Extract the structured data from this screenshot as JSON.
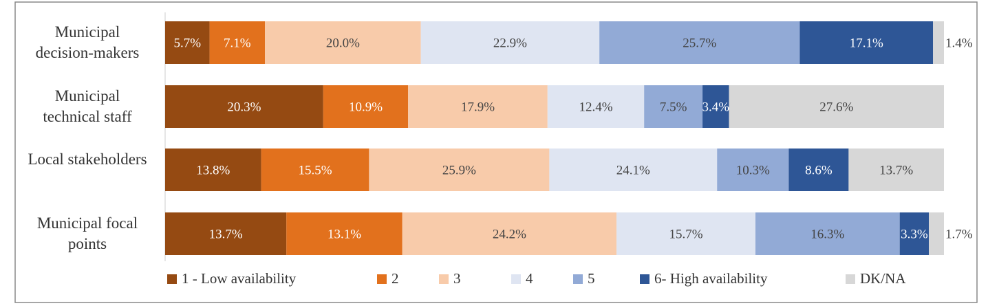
{
  "chart_data": {
    "type": "stacked-bar-horizontal",
    "categories": [
      "Municipal decision-makers",
      "Municipal technical staff",
      "Local stakeholders",
      "Municipal focal points"
    ],
    "series": [
      {
        "name": "1 - Low availability",
        "color": "#954a12",
        "values": [
          5.7,
          20.3,
          13.8,
          13.7
        ],
        "value_labels": [
          "5.7%",
          "20.3%",
          "13.8%",
          "13.7%"
        ]
      },
      {
        "name": "2",
        "color": "#e2711d",
        "values": [
          7.1,
          10.9,
          15.5,
          13.1
        ],
        "value_labels": [
          "7.1%",
          "10.9%",
          "15.5%",
          "13.1%"
        ]
      },
      {
        "name": "3",
        "color": "#f8cbaa",
        "values": [
          20.0,
          17.9,
          25.9,
          24.2
        ],
        "value_labels": [
          "20.0%",
          "17.9%",
          "25.9%",
          "24.2%"
        ]
      },
      {
        "name": "4",
        "color": "#dfe5f2",
        "values": [
          22.9,
          12.4,
          24.1,
          15.7
        ],
        "value_labels": [
          "22.9%",
          "12.4%",
          "24.1%",
          "15.7%"
        ]
      },
      {
        "name": "5",
        "color": "#92aad6",
        "values": [
          25.7,
          7.5,
          10.3,
          16.3
        ],
        "value_labels": [
          "25.7%",
          "7.5%",
          "10.3%",
          "16.3%"
        ]
      },
      {
        "name": "6- High availability",
        "color": "#2e5696",
        "values": [
          17.1,
          3.4,
          8.6,
          3.3
        ],
        "value_labels": [
          "17.1%",
          "3.4%",
          "8.6%",
          "3.3%"
        ]
      },
      {
        "name": "DK/NA",
        "color": "#d7d7d7",
        "values": [
          1.4,
          27.6,
          13.7,
          1.7
        ],
        "value_labels": [
          "1.4%",
          "27.6%",
          "13.7%",
          "1.7%"
        ]
      }
    ],
    "legend": "bottom"
  }
}
